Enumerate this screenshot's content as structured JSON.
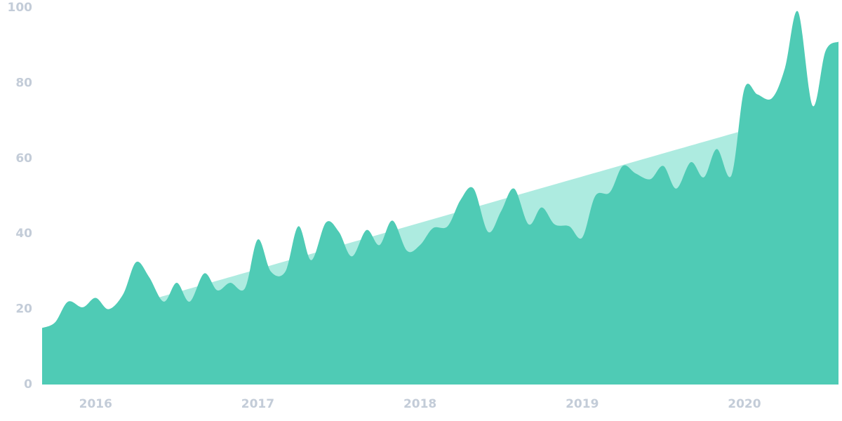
{
  "chart_data": {
    "type": "area",
    "series": [
      {
        "color": "#adebe0",
        "x": [
          2016.38,
          2019.96
        ],
        "values": [
          23,
          67
        ]
      },
      {
        "color": "#4fcbb5",
        "x": [
          2015.67,
          2015.75,
          2015.83,
          2015.92,
          2016.0,
          2016.08,
          2016.17,
          2016.25,
          2016.33,
          2016.42,
          2016.5,
          2016.58,
          2016.67,
          2016.75,
          2016.83,
          2016.92,
          2017.0,
          2017.08,
          2017.17,
          2017.25,
          2017.33,
          2017.42,
          2017.5,
          2017.58,
          2017.67,
          2017.75,
          2017.83,
          2017.92,
          2018.0,
          2018.08,
          2018.17,
          2018.25,
          2018.33,
          2018.42,
          2018.5,
          2018.58,
          2018.67,
          2018.75,
          2018.83,
          2018.92,
          2019.0,
          2019.08,
          2019.17,
          2019.25,
          2019.33,
          2019.42,
          2019.5,
          2019.58,
          2019.67,
          2019.75,
          2019.83,
          2019.92,
          2020.0,
          2020.08,
          2020.17,
          2020.25,
          2020.33,
          2020.42,
          2020.5,
          2020.58
        ],
        "values": [
          15,
          16.5,
          22,
          20.5,
          23,
          20,
          24,
          32.5,
          28.5,
          22,
          27,
          22,
          29.5,
          25,
          27,
          25.5,
          38.5,
          30,
          30,
          42,
          33,
          43,
          40.5,
          34,
          41,
          37,
          43.5,
          35.5,
          37,
          41.5,
          42,
          49,
          52,
          40.5,
          46,
          52,
          42.5,
          47,
          42.5,
          42,
          39,
          50,
          51,
          58,
          56,
          54.5,
          58,
          52,
          59,
          55,
          62.5,
          55.5,
          78.5,
          77,
          76,
          84,
          99,
          74,
          88.5,
          91
        ]
      }
    ],
    "xlim": [
      2015.67,
      2020.58
    ],
    "xticks": [
      2016,
      2017,
      2018,
      2019,
      2020
    ],
    "ylim": [
      0,
      100
    ],
    "yticks": [
      0,
      20,
      40,
      60,
      80,
      100
    ],
    "grid": false
  }
}
